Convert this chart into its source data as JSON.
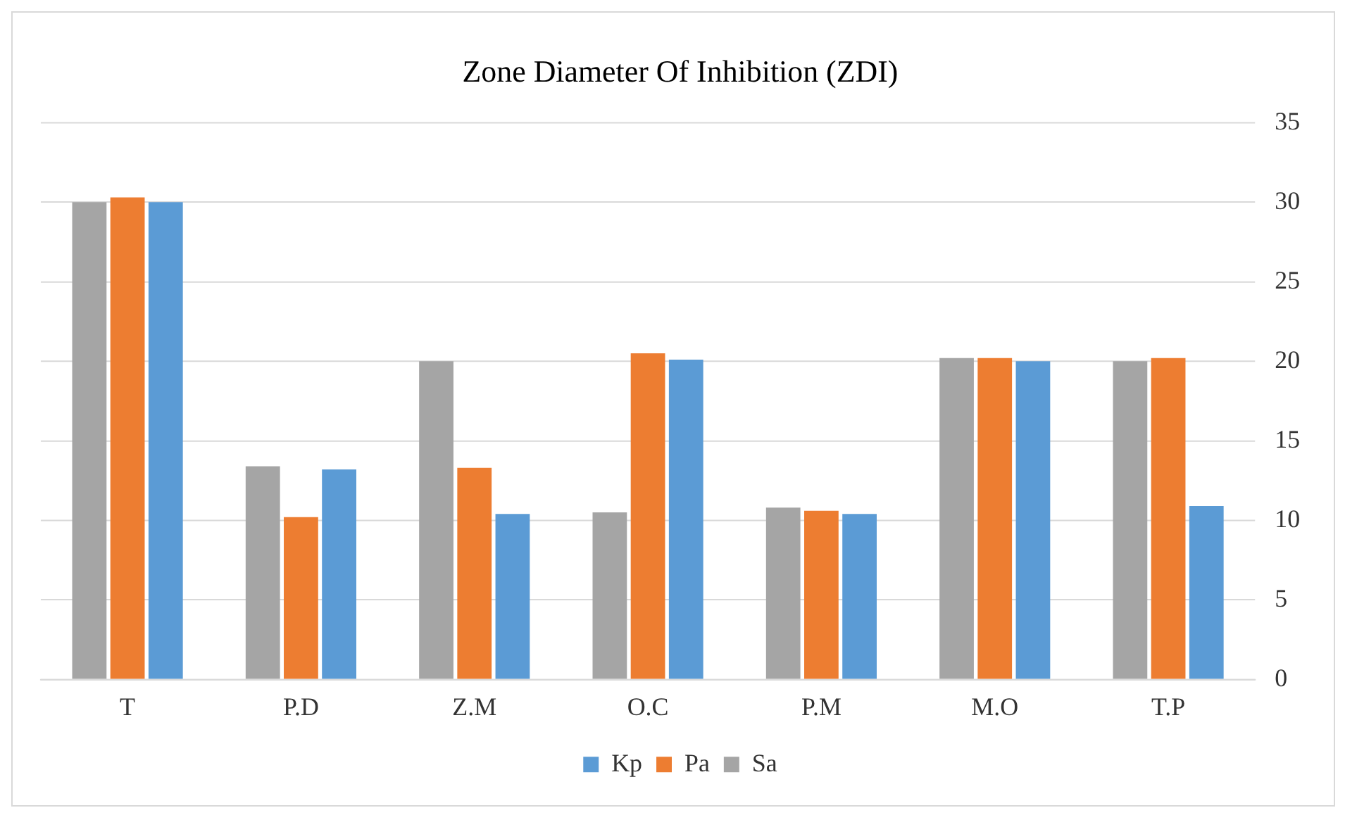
{
  "chart_data": {
    "type": "bar",
    "title": "Zone Diameter Of Inhibition (ZDI)",
    "categories": [
      "T",
      "P.D",
      "Z.M",
      "O.C",
      "P.M",
      "M.O",
      "T.P"
    ],
    "series": [
      {
        "name": "Sa",
        "color": "#a5a5a5",
        "values": [
          30.0,
          13.4,
          20.0,
          10.5,
          10.8,
          20.2,
          20.0
        ]
      },
      {
        "name": "Pa",
        "color": "#ed7d31",
        "values": [
          30.3,
          10.2,
          13.3,
          20.5,
          10.6,
          20.2,
          20.2
        ]
      },
      {
        "name": "Kp",
        "color": "#5b9bd5",
        "values": [
          30.0,
          13.2,
          10.4,
          20.1,
          10.4,
          20.0,
          10.9
        ]
      }
    ],
    "ylim": [
      0,
      35
    ],
    "yticks": [
      0,
      5,
      10,
      15,
      20,
      25,
      30,
      35
    ],
    "grid": "y",
    "legend": "bottom"
  }
}
